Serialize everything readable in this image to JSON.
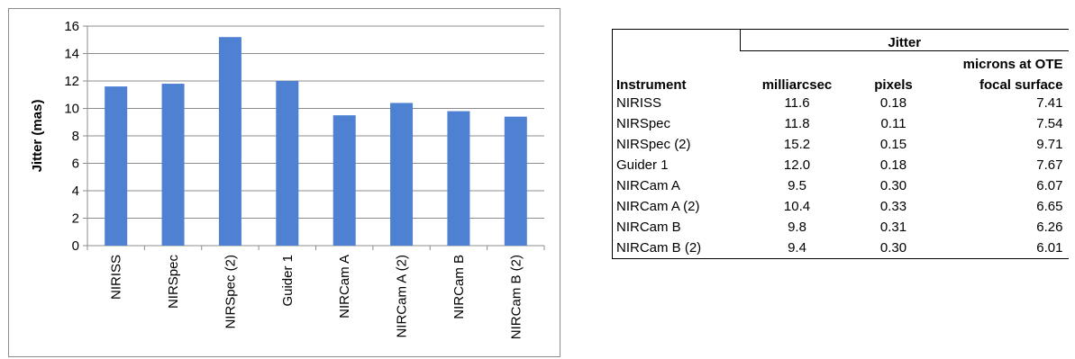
{
  "chart_data": {
    "type": "bar",
    "categories": [
      "NIRISS",
      "NIRSpec",
      "NIRSpec (2)",
      "Guider 1",
      "NIRCam A",
      "NIRCam A (2)",
      "NIRCam B",
      "NIRCam B (2)"
    ],
    "values": [
      11.6,
      11.8,
      15.2,
      12.0,
      9.5,
      10.4,
      9.8,
      9.4
    ],
    "ylabel": "Jitter (mas)",
    "ylim": [
      0,
      16
    ],
    "yticks": [
      "0",
      "2",
      "4",
      "6",
      "8",
      "10",
      "12",
      "14",
      "16"
    ],
    "grid": true,
    "bar_color": "#4f81d3",
    "grid_color": "#8c8c8c"
  },
  "table": {
    "group_header": "Jitter",
    "headers": {
      "instrument": "Instrument",
      "milliarcsec": "milliarcsec",
      "pixels": "pixels",
      "microns_line1": "microns at OTE",
      "microns_line2": "focal surface"
    },
    "rows": [
      {
        "instrument": "NIRISS",
        "milliarcsec": "11.6",
        "pixels": "0.18",
        "microns": "7.41"
      },
      {
        "instrument": "NIRSpec",
        "milliarcsec": "11.8",
        "pixels": "0.11",
        "microns": "7.54"
      },
      {
        "instrument": "NIRSpec (2)",
        "milliarcsec": "15.2",
        "pixels": "0.15",
        "microns": "9.71"
      },
      {
        "instrument": "Guider 1",
        "milliarcsec": "12.0",
        "pixels": "0.18",
        "microns": "7.67"
      },
      {
        "instrument": "NIRCam A",
        "milliarcsec": "9.5",
        "pixels": "0.30",
        "microns": "6.07"
      },
      {
        "instrument": "NIRCam A (2)",
        "milliarcsec": "10.4",
        "pixels": "0.33",
        "microns": "6.65"
      },
      {
        "instrument": "NIRCam B",
        "milliarcsec": "9.8",
        "pixels": "0.31",
        "microns": "6.26"
      },
      {
        "instrument": "NIRCam B (2)",
        "milliarcsec": "9.4",
        "pixels": "0.30",
        "microns": "6.01"
      }
    ]
  }
}
